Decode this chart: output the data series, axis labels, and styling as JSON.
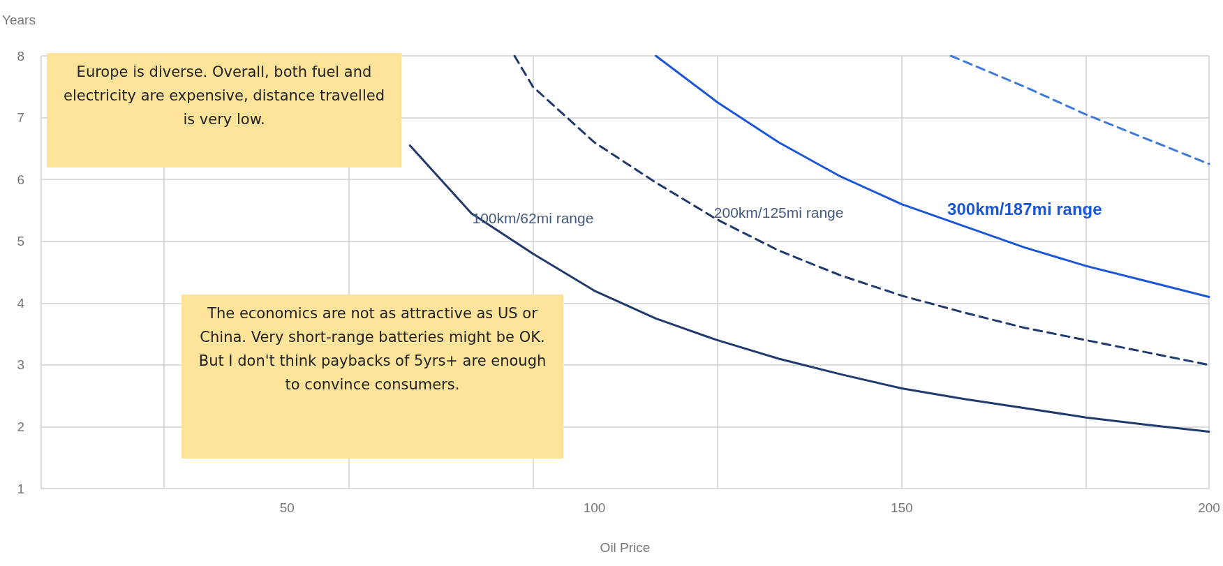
{
  "chart_data": {
    "type": "line",
    "xlabel": "Oil Price",
    "ylabel": "Years",
    "xlim": [
      10,
      200
    ],
    "xticks": [
      50,
      100,
      150,
      200
    ],
    "ylim": [
      1,
      8
    ],
    "yticks": [
      1,
      2,
      3,
      4,
      5,
      6,
      7,
      8
    ],
    "grid": true,
    "legend": false,
    "marker": "none",
    "series": [
      {
        "name": "100km/62mi range",
        "color": "#22396b",
        "line_style": "solid",
        "x": [
          70,
          80,
          90,
          100,
          110,
          120,
          130,
          140,
          150,
          160,
          170,
          180,
          190,
          200
        ],
        "values": [
          6.55,
          5.45,
          4.8,
          4.2,
          3.75,
          3.4,
          3.1,
          2.85,
          2.62,
          2.45,
          2.3,
          2.15,
          2.03,
          1.92
        ]
      },
      {
        "name": "200km/125mi range",
        "color": "#22396b",
        "line_style": "dashed",
        "x": [
          87,
          90,
          100,
          110,
          120,
          130,
          140,
          150,
          160,
          170,
          180,
          190,
          200
        ],
        "values": [
          8,
          7.5,
          6.6,
          5.95,
          5.35,
          4.85,
          4.45,
          4.12,
          3.85,
          3.6,
          3.4,
          3.2,
          3.0
        ]
      },
      {
        "name": "300km/187mi range",
        "color": "#1a56d6",
        "line_style": "solid",
        "x": [
          110,
          120,
          130,
          140,
          150,
          160,
          170,
          180,
          190,
          200
        ],
        "values": [
          8,
          7.25,
          6.6,
          6.05,
          5.6,
          5.25,
          4.9,
          4.6,
          4.35,
          4.1
        ]
      },
      {
        "color": "#3f7ad6",
        "line_style": "dashed",
        "x": [
          158,
          170,
          180,
          190,
          200
        ],
        "values": [
          8,
          7.5,
          7.05,
          6.65,
          6.25
        ]
      }
    ],
    "annotations": [
      "Europe is diverse. Overall, both fuel and electricity are expensive, distance travelled is very low.",
      "The economics are not as attractive as US or China. Very short-range batteries might be OK. But I don't think paybacks of 5yrs+ are enough to convince consumers."
    ]
  }
}
